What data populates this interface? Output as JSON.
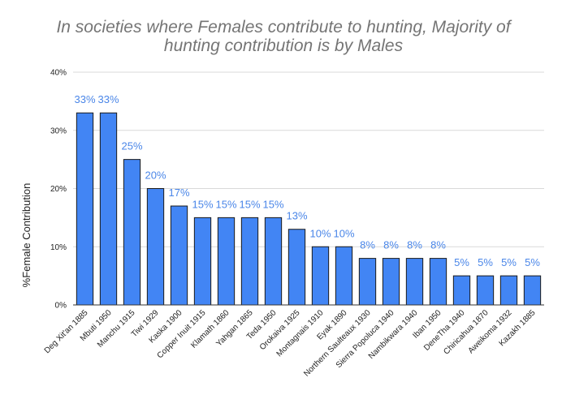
{
  "chart_data": {
    "type": "bar",
    "title": "In societies where Females contribute to hunting, Majority of hunting contribution is by Males",
    "title_lines": [
      "In societies where Females contribute to hunting, Majority of",
      "hunting contribution is by Males"
    ],
    "xlabel": "",
    "ylabel": "%Female Contribution",
    "ylim": [
      0,
      40
    ],
    "yticks": [
      0,
      10,
      20,
      30,
      40
    ],
    "ytick_labels": [
      "0%",
      "10%",
      "20%",
      "30%",
      "40%"
    ],
    "grid": true,
    "legend": "none",
    "bar_color": "#4285f4",
    "label_color": "#4a86e8",
    "categories": [
      "Deg Xit'an 1885",
      "Mbuti 1950",
      "Manchu 1915",
      "Tiwi 1929",
      "Kaska 1900",
      "Copper Inuit 1915",
      "Klamath 1860",
      "Yahgan 1865",
      "Teda 1950",
      "Orokaiva 1925",
      "Montagnais 1910",
      "Eyak 1890",
      "Northern Saulteaux 1930",
      "Sierra Popoluca 1940",
      "Nambikwara 1940",
      "Iban 1950",
      "DeneTha 1940",
      "Chiricahua 1870",
      "Aweikoma 1932",
      "Kazakh 1885"
    ],
    "values": [
      33,
      33,
      25,
      20,
      17,
      15,
      15,
      15,
      15,
      13,
      10,
      10,
      8,
      8,
      8,
      8,
      5,
      5,
      5,
      5
    ],
    "data_labels": [
      "33%",
      "33%",
      "25%",
      "20%",
      "17%",
      "15%",
      "15%",
      "15%",
      "15%",
      "13%",
      "10%",
      "10%",
      "8%",
      "8%",
      "8%",
      "8%",
      "5%",
      "5%",
      "5%",
      "5%"
    ]
  }
}
